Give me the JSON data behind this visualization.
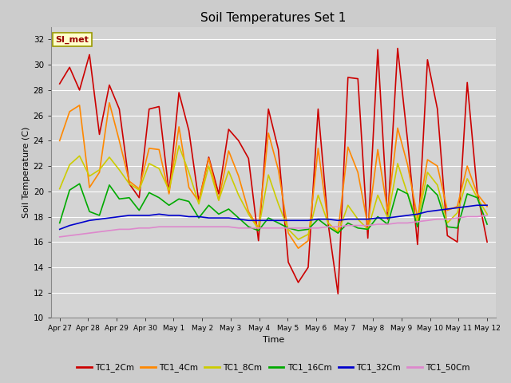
{
  "title": "Soil Temperatures Set 1",
  "xlabel": "Time",
  "ylabel": "Soil Temperature (C)",
  "ylim": [
    10,
    33
  ],
  "yticks": [
    10,
    12,
    14,
    16,
    18,
    20,
    22,
    24,
    26,
    28,
    30,
    32
  ],
  "background_color": "#cccccc",
  "plot_bg_color": "#d4d4d4",
  "annotation_text": "SI_met",
  "annotation_box_color": "#ffffcc",
  "annotation_text_color": "#990000",
  "series_keys": [
    "TC1_2Cm",
    "TC1_4Cm",
    "TC1_8Cm",
    "TC1_16Cm",
    "TC1_32Cm",
    "TC1_50Cm"
  ],
  "series_colors": [
    "#cc0000",
    "#ff8800",
    "#cccc00",
    "#00aa00",
    "#0000cc",
    "#dd88cc"
  ],
  "series_lw": [
    1.2,
    1.2,
    1.2,
    1.2,
    1.2,
    1.2
  ],
  "x_labels": [
    "Apr 27",
    "Apr 28",
    "Apr 29",
    "Apr 30",
    "May 1",
    "May 2",
    "May 3",
    "May 4",
    "May 5",
    "May 6",
    "May 7",
    "May 8",
    "May 9",
    "May 10",
    "May 11",
    "May 12"
  ],
  "TC1_2Cm": [
    28.5,
    29.8,
    28.0,
    30.8,
    24.5,
    28.4,
    26.5,
    20.6,
    19.5,
    26.5,
    26.7,
    19.9,
    27.8,
    24.8,
    19.2,
    22.7,
    19.8,
    24.9,
    24.0,
    22.6,
    16.1,
    26.5,
    23.3,
    14.4,
    12.8,
    14.0,
    26.5,
    17.5,
    11.9,
    29.0,
    28.9,
    16.3,
    31.2,
    17.8,
    31.3,
    24.0,
    15.8,
    30.4,
    26.5,
    16.5,
    16.0,
    28.6,
    20.0,
    16.0
  ],
  "TC1_4Cm": [
    24.0,
    26.3,
    26.8,
    20.3,
    21.5,
    27.0,
    24.0,
    20.8,
    20.2,
    23.4,
    23.3,
    19.8,
    25.1,
    20.3,
    19.2,
    22.6,
    19.3,
    23.2,
    21.2,
    18.4,
    17.1,
    24.6,
    21.7,
    16.7,
    15.5,
    16.1,
    23.4,
    17.5,
    16.8,
    23.5,
    21.5,
    17.3,
    23.3,
    18.4,
    25.0,
    22.1,
    17.9,
    22.5,
    22.0,
    18.5,
    18.8,
    22.0,
    19.8,
    18.8
  ],
  "TC1_8Cm": [
    20.2,
    22.1,
    22.8,
    21.2,
    21.7,
    22.7,
    21.7,
    20.6,
    20.1,
    22.2,
    21.8,
    20.1,
    23.6,
    21.5,
    19.0,
    22.0,
    19.3,
    21.6,
    19.7,
    18.2,
    17.0,
    21.3,
    19.0,
    17.0,
    16.2,
    16.6,
    19.7,
    17.5,
    16.7,
    18.9,
    17.8,
    17.0,
    19.7,
    17.9,
    22.2,
    19.8,
    17.6,
    21.5,
    20.5,
    17.5,
    18.3,
    21.0,
    19.5,
    18.2
  ],
  "TC1_16Cm": [
    17.5,
    20.1,
    20.6,
    18.4,
    18.1,
    20.5,
    19.4,
    19.5,
    18.5,
    19.9,
    19.5,
    18.9,
    19.4,
    19.2,
    17.9,
    18.9,
    18.2,
    18.6,
    17.9,
    17.2,
    16.9,
    17.9,
    17.5,
    17.1,
    16.9,
    17.0,
    17.8,
    17.2,
    16.7,
    17.5,
    17.1,
    17.0,
    18.0,
    17.4,
    20.2,
    19.8,
    17.2,
    20.5,
    19.7,
    17.2,
    17.1,
    19.8,
    19.5,
    17.4
  ],
  "TC1_32Cm": [
    17.0,
    17.3,
    17.5,
    17.7,
    17.8,
    17.9,
    18.0,
    18.1,
    18.1,
    18.1,
    18.2,
    18.1,
    18.1,
    18.0,
    18.0,
    17.9,
    17.9,
    17.9,
    17.8,
    17.7,
    17.7,
    17.7,
    17.7,
    17.7,
    17.7,
    17.7,
    17.8,
    17.8,
    17.7,
    17.8,
    17.8,
    17.8,
    17.9,
    17.9,
    18.0,
    18.1,
    18.2,
    18.4,
    18.5,
    18.6,
    18.7,
    18.8,
    18.9,
    18.9
  ],
  "TC1_50Cm": [
    16.4,
    16.5,
    16.6,
    16.7,
    16.8,
    16.9,
    17.0,
    17.0,
    17.1,
    17.1,
    17.2,
    17.2,
    17.2,
    17.2,
    17.2,
    17.2,
    17.2,
    17.2,
    17.1,
    17.1,
    17.1,
    17.1,
    17.1,
    17.1,
    17.1,
    17.1,
    17.1,
    17.2,
    17.2,
    17.3,
    17.3,
    17.3,
    17.4,
    17.4,
    17.5,
    17.5,
    17.6,
    17.7,
    17.8,
    17.8,
    17.9,
    18.0,
    18.0,
    18.1
  ]
}
